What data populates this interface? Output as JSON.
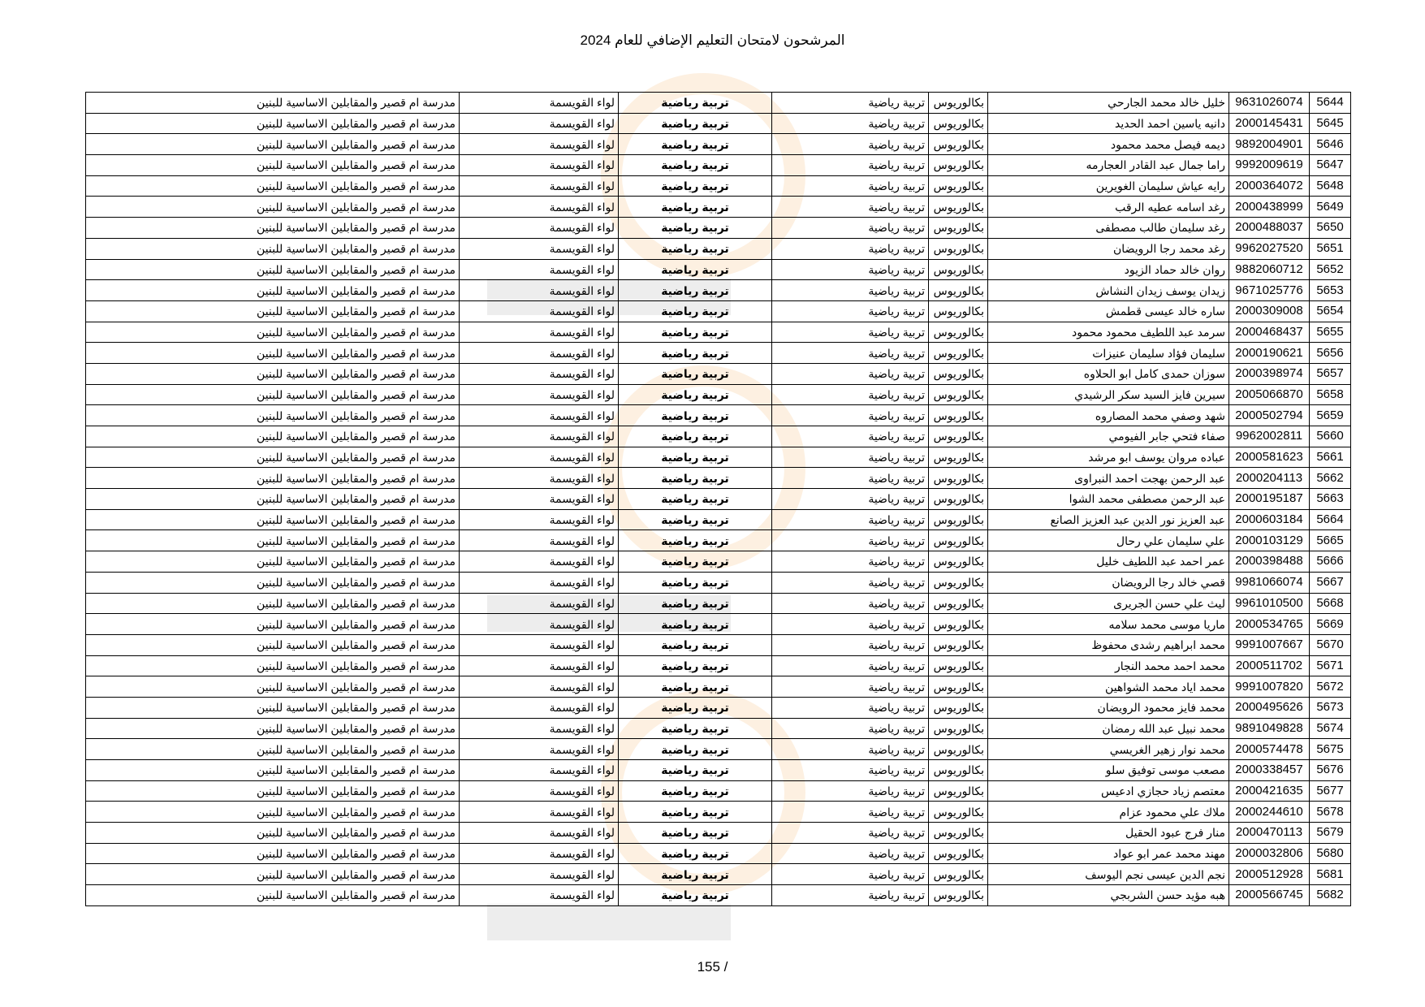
{
  "title": "المرشحون لامتحان التعليم الإضافي للعام 2024",
  "page_number": "155 /",
  "common": {
    "degree": "بكالوريوس",
    "specialization": "تربية رياضية",
    "subject": "تربية رياضية",
    "district": "لواء القويسمة",
    "school": "مدرسة ام قصير والمقابلين الاساسية للبنين"
  },
  "rows": [
    {
      "seq": "5644",
      "id": "9631026074",
      "name": "خليل خالد محمد الجارحي"
    },
    {
      "seq": "5645",
      "id": "2000145431",
      "name": "دانيه ياسين احمد الحديد"
    },
    {
      "seq": "5646",
      "id": "9892004901",
      "name": "ديمه فيصل محمد محمود"
    },
    {
      "seq": "5647",
      "id": "9992009619",
      "name": "راما جمال عبد  القادر العجارمه"
    },
    {
      "seq": "5648",
      "id": "2000364072",
      "name": "رايه عياش سليمان الغويرين"
    },
    {
      "seq": "5649",
      "id": "2000438999",
      "name": "رغد اسامه عطيه الرقب"
    },
    {
      "seq": "5650",
      "id": "2000488037",
      "name": "رغد سليمان طالب مصطفى"
    },
    {
      "seq": "5651",
      "id": "9962027520",
      "name": "رغد محمد رجا الرويضان"
    },
    {
      "seq": "5652",
      "id": "9882060712",
      "name": "روان خالد حماد الزيود"
    },
    {
      "seq": "5653",
      "id": "9671025776",
      "name": "زيدان يوسف زيدان النشاش"
    },
    {
      "seq": "5654",
      "id": "2000309008",
      "name": "ساره خالد عيسى قطمش"
    },
    {
      "seq": "5655",
      "id": "2000468437",
      "name": "سرمد عبد اللطيف محمود محمود"
    },
    {
      "seq": "5656",
      "id": "2000190621",
      "name": "سليمان فؤاد سليمان عنيزات"
    },
    {
      "seq": "5657",
      "id": "2000398974",
      "name": "سوزان حمدى كامل ابو الحلاوه"
    },
    {
      "seq": "5658",
      "id": "2005066870",
      "name": "سيرين فايز السيد سكر الرشيدي"
    },
    {
      "seq": "5659",
      "id": "2000502794",
      "name": "شهد وصفي محمد المصاروه"
    },
    {
      "seq": "5660",
      "id": "9962002811",
      "name": "صفاء فتحي جابر الفيومي"
    },
    {
      "seq": "5661",
      "id": "2000581623",
      "name": "عباده مروان يوسف ابو مرشد"
    },
    {
      "seq": "5662",
      "id": "2000204113",
      "name": "عبد الرحمن بهجت احمد النبراوى"
    },
    {
      "seq": "5663",
      "id": "2000195187",
      "name": "عبد الرحمن مصطفى محمد الشوا"
    },
    {
      "seq": "5664",
      "id": "2000603184",
      "name": "عبد العزيز نور الدين عبد العزيز الصانع"
    },
    {
      "seq": "5665",
      "id": "2000103129",
      "name": "علي سليمان علي رحال"
    },
    {
      "seq": "5666",
      "id": "2000398488",
      "name": "عمر احمد عبد اللطيف خليل"
    },
    {
      "seq": "5667",
      "id": "9981066074",
      "name": "قصي خالد رجا الرويضان"
    },
    {
      "seq": "5668",
      "id": "9961010500",
      "name": "ليث علي حسن الجريرى"
    },
    {
      "seq": "5669",
      "id": "2000534765",
      "name": "ماريا موسى محمد سلامه"
    },
    {
      "seq": "5670",
      "id": "9991007667",
      "name": "محمد ابراهيم رشدى محفوظ"
    },
    {
      "seq": "5671",
      "id": "2000511702",
      "name": "محمد احمد محمد النجار"
    },
    {
      "seq": "5672",
      "id": "9991007820",
      "name": "محمد اياد محمد الشواهين"
    },
    {
      "seq": "5673",
      "id": "2000495626",
      "name": "محمد فايز محمود الرويضان"
    },
    {
      "seq": "5674",
      "id": "9891049828",
      "name": "محمد نبيل عبد الله رمضان"
    },
    {
      "seq": "5675",
      "id": "2000574478",
      "name": "محمد نوار زهير الغريسي"
    },
    {
      "seq": "5676",
      "id": "2000338457",
      "name": "مصعب موسى توفيق سلو"
    },
    {
      "seq": "5677",
      "id": "2000421635",
      "name": "معتصم زياد حجازي ادعيس"
    },
    {
      "seq": "5678",
      "id": "2000244610",
      "name": "ملاك علي محمود عزام"
    },
    {
      "seq": "5679",
      "id": "2000470113",
      "name": "منار فرج عبود الحقيل"
    },
    {
      "seq": "5680",
      "id": "2000032806",
      "name": "مهند محمد عمر ابو عواد"
    },
    {
      "seq": "5681",
      "id": "2000512928",
      "name": "نجم الدين عيسى نجم اليوسف"
    },
    {
      "seq": "5682",
      "id": "2000566745",
      "name": "هبه مؤيد حسن الشربجي"
    }
  ]
}
